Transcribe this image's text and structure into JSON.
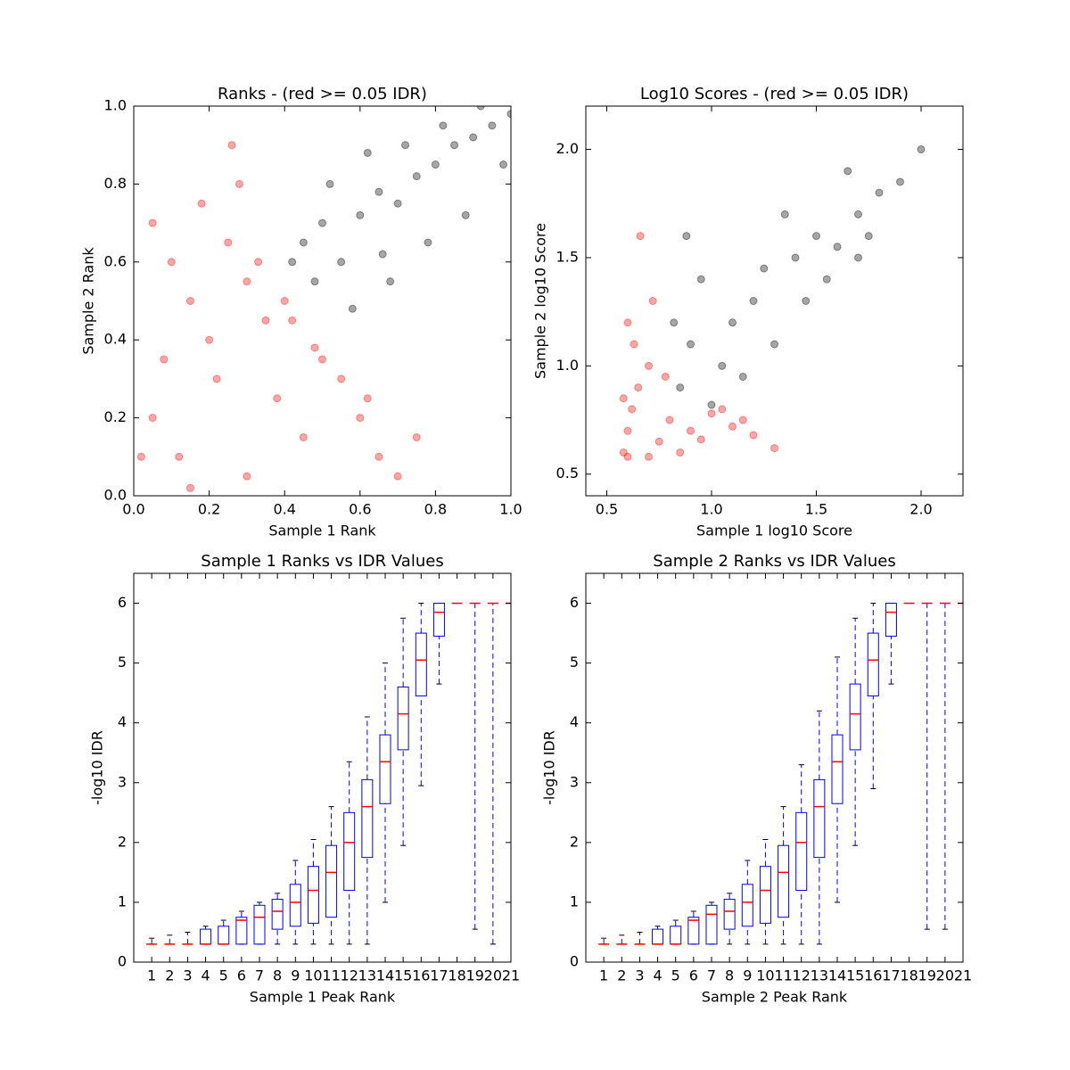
{
  "chart_data": [
    {
      "type": "scatter",
      "title": "Ranks - (red >= 0.05 IDR)",
      "x_label": "Sample 1 Rank",
      "y_label": "Sample 2 Rank",
      "xlim": [
        0,
        1
      ],
      "ylim": [
        0,
        1
      ],
      "xticks": [
        {
          "value": 0,
          "label": "0.0"
        },
        0.2,
        0.4,
        0.6,
        0.8,
        {
          "value": 1,
          "label": "1.0"
        }
      ],
      "yticks": [
        {
          "value": 0,
          "label": "0.0"
        },
        0.2,
        0.4,
        0.6,
        0.8,
        {
          "value": 1,
          "label": "1.0"
        }
      ],
      "series": [
        {
          "color": "#ff0000",
          "x": [
            0.05,
            0.1,
            0.15,
            0.2,
            0.25,
            0.3,
            0.35,
            0.05,
            0.12,
            0.22,
            0.3,
            0.38,
            0.45,
            0.5,
            0.55,
            0.6,
            0.65,
            0.7,
            0.48,
            0.42,
            0.08,
            0.18,
            0.28,
            0.33,
            0.62,
            0.75,
            0.02,
            0.26,
            0.15,
            0.4
          ],
          "y": [
            0.7,
            0.6,
            0.5,
            0.4,
            0.65,
            0.55,
            0.45,
            0.2,
            0.1,
            0.3,
            0.05,
            0.25,
            0.15,
            0.35,
            0.3,
            0.2,
            0.1,
            0.05,
            0.38,
            0.45,
            0.35,
            0.75,
            0.8,
            0.6,
            0.25,
            0.15,
            0.1,
            0.9,
            0.02,
            0.5
          ]
        },
        {
          "color": "#000000",
          "x": [
            0.45,
            0.5,
            0.55,
            0.6,
            0.65,
            0.7,
            0.75,
            0.8,
            0.85,
            0.9,
            0.95,
            1.0,
            0.42,
            0.48,
            0.58,
            0.68,
            0.78,
            0.88,
            0.98,
            0.62,
            0.72,
            0.82,
            0.92,
            0.52,
            0.66
          ],
          "y": [
            0.65,
            0.7,
            0.6,
            0.72,
            0.78,
            0.75,
            0.82,
            0.85,
            0.9,
            0.92,
            0.95,
            0.98,
            0.6,
            0.55,
            0.48,
            0.55,
            0.65,
            0.72,
            0.85,
            0.88,
            0.9,
            0.95,
            1.0,
            0.8,
            0.62
          ]
        }
      ]
    },
    {
      "type": "scatter",
      "title": "Log10 Scores - (red >= 0.05 IDR)",
      "x_label": "Sample 1 log10 Score",
      "y_label": "Sample 2 log10 Score",
      "xlim": [
        0.4,
        2.2
      ],
      "ylim": [
        0.4,
        2.2
      ],
      "xticks": [
        0.5,
        {
          "value": 1,
          "label": "1.0"
        },
        1.5,
        {
          "value": 2,
          "label": "2.0"
        }
      ],
      "yticks": [
        0.5,
        {
          "value": 1,
          "label": "1.0"
        },
        1.5,
        {
          "value": 2,
          "label": "2.0"
        }
      ],
      "series": [
        {
          "color": "#ff0000",
          "x": [
            0.58,
            0.6,
            0.62,
            0.65,
            0.7,
            0.75,
            0.8,
            0.9,
            1.0,
            1.1,
            1.2,
            1.3,
            0.6,
            0.63,
            0.7,
            0.72,
            0.58,
            0.85,
            0.95,
            1.05,
            1.15,
            0.66,
            0.6,
            0.78
          ],
          "y": [
            0.6,
            0.7,
            0.8,
            0.9,
            1.0,
            0.65,
            0.75,
            0.7,
            0.78,
            0.72,
            0.68,
            0.62,
            1.2,
            1.1,
            0.58,
            1.3,
            0.85,
            0.6,
            0.66,
            0.8,
            0.75,
            1.6,
            0.58,
            0.95
          ]
        },
        {
          "color": "#000000",
          "x": [
            0.85,
            0.9,
            1.0,
            1.1,
            1.2,
            1.3,
            1.4,
            1.5,
            1.6,
            1.7,
            1.8,
            0.82,
            0.95,
            1.05,
            1.25,
            1.45,
            1.65,
            1.75,
            1.9,
            2.0,
            1.35,
            1.55,
            1.15,
            0.88,
            1.7
          ],
          "y": [
            0.9,
            1.1,
            0.82,
            1.2,
            1.3,
            1.1,
            1.5,
            1.6,
            1.55,
            1.7,
            1.8,
            1.2,
            1.4,
            1.0,
            1.45,
            1.3,
            1.9,
            1.6,
            1.85,
            2.0,
            1.7,
            1.4,
            0.95,
            1.6,
            1.5
          ]
        }
      ]
    },
    {
      "type": "box",
      "title": "Sample 1 Ranks vs IDR Values",
      "x_label": "Sample 1 Peak Rank",
      "y_label": "-log10 IDR",
      "xlim": [
        0,
        21
      ],
      "ylim": [
        0,
        6.5
      ],
      "xticks": [
        1,
        2,
        3,
        4,
        5,
        6,
        7,
        8,
        9,
        10,
        11,
        12,
        13,
        14,
        15,
        16,
        17,
        18,
        19,
        20,
        21
      ],
      "yticks": [
        0,
        1,
        2,
        3,
        4,
        5,
        6
      ],
      "box_color": "#0000ff",
      "median_color": "#ff0000",
      "x": [
        1,
        2,
        3,
        4,
        5,
        6,
        7,
        8,
        9,
        10,
        11,
        12,
        13,
        14,
        15,
        16,
        17,
        18,
        19,
        20,
        21
      ],
      "whislo": [
        0.3,
        0.3,
        0.3,
        0.3,
        0.3,
        0.3,
        0.3,
        0.3,
        0.3,
        0.3,
        0.3,
        0.3,
        0.3,
        1.0,
        1.95,
        2.95,
        4.65,
        6,
        0.55,
        0.3,
        6
      ],
      "q1": [
        0.3,
        0.3,
        0.3,
        0.3,
        0.3,
        0.3,
        0.3,
        0.55,
        0.6,
        0.65,
        0.75,
        1.2,
        1.75,
        2.65,
        3.55,
        4.45,
        5.45,
        6,
        6,
        6,
        6
      ],
      "med": [
        0.3,
        0.3,
        0.3,
        0.3,
        0.3,
        0.7,
        0.75,
        0.85,
        1.0,
        1.2,
        1.5,
        2.0,
        2.6,
        3.35,
        4.15,
        5.05,
        5.85,
        6,
        6,
        6,
        6
      ],
      "q3": [
        0.3,
        0.3,
        0.3,
        0.55,
        0.6,
        0.75,
        0.95,
        1.05,
        1.3,
        1.6,
        1.95,
        2.5,
        3.05,
        3.8,
        4.6,
        5.5,
        6,
        6,
        6,
        6,
        6
      ],
      "whishi": [
        0.4,
        0.45,
        0.5,
        0.6,
        0.7,
        0.85,
        1.0,
        1.15,
        1.7,
        2.05,
        2.6,
        3.35,
        4.1,
        5.0,
        5.75,
        6,
        6,
        6,
        6,
        6,
        6
      ]
    },
    {
      "type": "box",
      "title": "Sample 2 Ranks vs IDR Values",
      "x_label": "Sample 2 Peak Rank",
      "y_label": "-log10 IDR",
      "xlim": [
        0,
        21
      ],
      "ylim": [
        0,
        6.5
      ],
      "xticks": [
        1,
        2,
        3,
        4,
        5,
        6,
        7,
        8,
        9,
        10,
        11,
        12,
        13,
        14,
        15,
        16,
        17,
        18,
        19,
        20,
        21
      ],
      "yticks": [
        0,
        1,
        2,
        3,
        4,
        5,
        6
      ],
      "box_color": "#0000ff",
      "median_color": "#ff0000",
      "x": [
        1,
        2,
        3,
        4,
        5,
        6,
        7,
        8,
        9,
        10,
        11,
        12,
        13,
        14,
        15,
        16,
        17,
        18,
        19,
        20,
        21
      ],
      "whislo": [
        0.3,
        0.3,
        0.3,
        0.3,
        0.3,
        0.3,
        0.3,
        0.3,
        0.3,
        0.3,
        0.3,
        0.3,
        0.3,
        1.0,
        1.95,
        2.9,
        4.65,
        6,
        0.55,
        0.55,
        6
      ],
      "q1": [
        0.3,
        0.3,
        0.3,
        0.3,
        0.3,
        0.3,
        0.3,
        0.55,
        0.6,
        0.65,
        0.75,
        1.2,
        1.75,
        2.65,
        3.55,
        4.45,
        5.45,
        6,
        6,
        6,
        6
      ],
      "med": [
        0.3,
        0.3,
        0.3,
        0.3,
        0.3,
        0.7,
        0.8,
        0.85,
        1.0,
        1.2,
        1.5,
        2.0,
        2.6,
        3.35,
        4.15,
        5.05,
        5.85,
        6,
        6,
        6,
        6
      ],
      "q3": [
        0.3,
        0.3,
        0.3,
        0.55,
        0.6,
        0.75,
        0.95,
        1.05,
        1.3,
        1.6,
        1.95,
        2.5,
        3.05,
        3.8,
        4.65,
        5.5,
        6,
        6,
        6,
        6,
        6
      ],
      "whishi": [
        0.4,
        0.45,
        0.5,
        0.6,
        0.7,
        0.85,
        1.0,
        1.15,
        1.7,
        2.05,
        2.6,
        3.3,
        4.2,
        5.1,
        5.75,
        6,
        6,
        6,
        6,
        6,
        6
      ]
    }
  ]
}
